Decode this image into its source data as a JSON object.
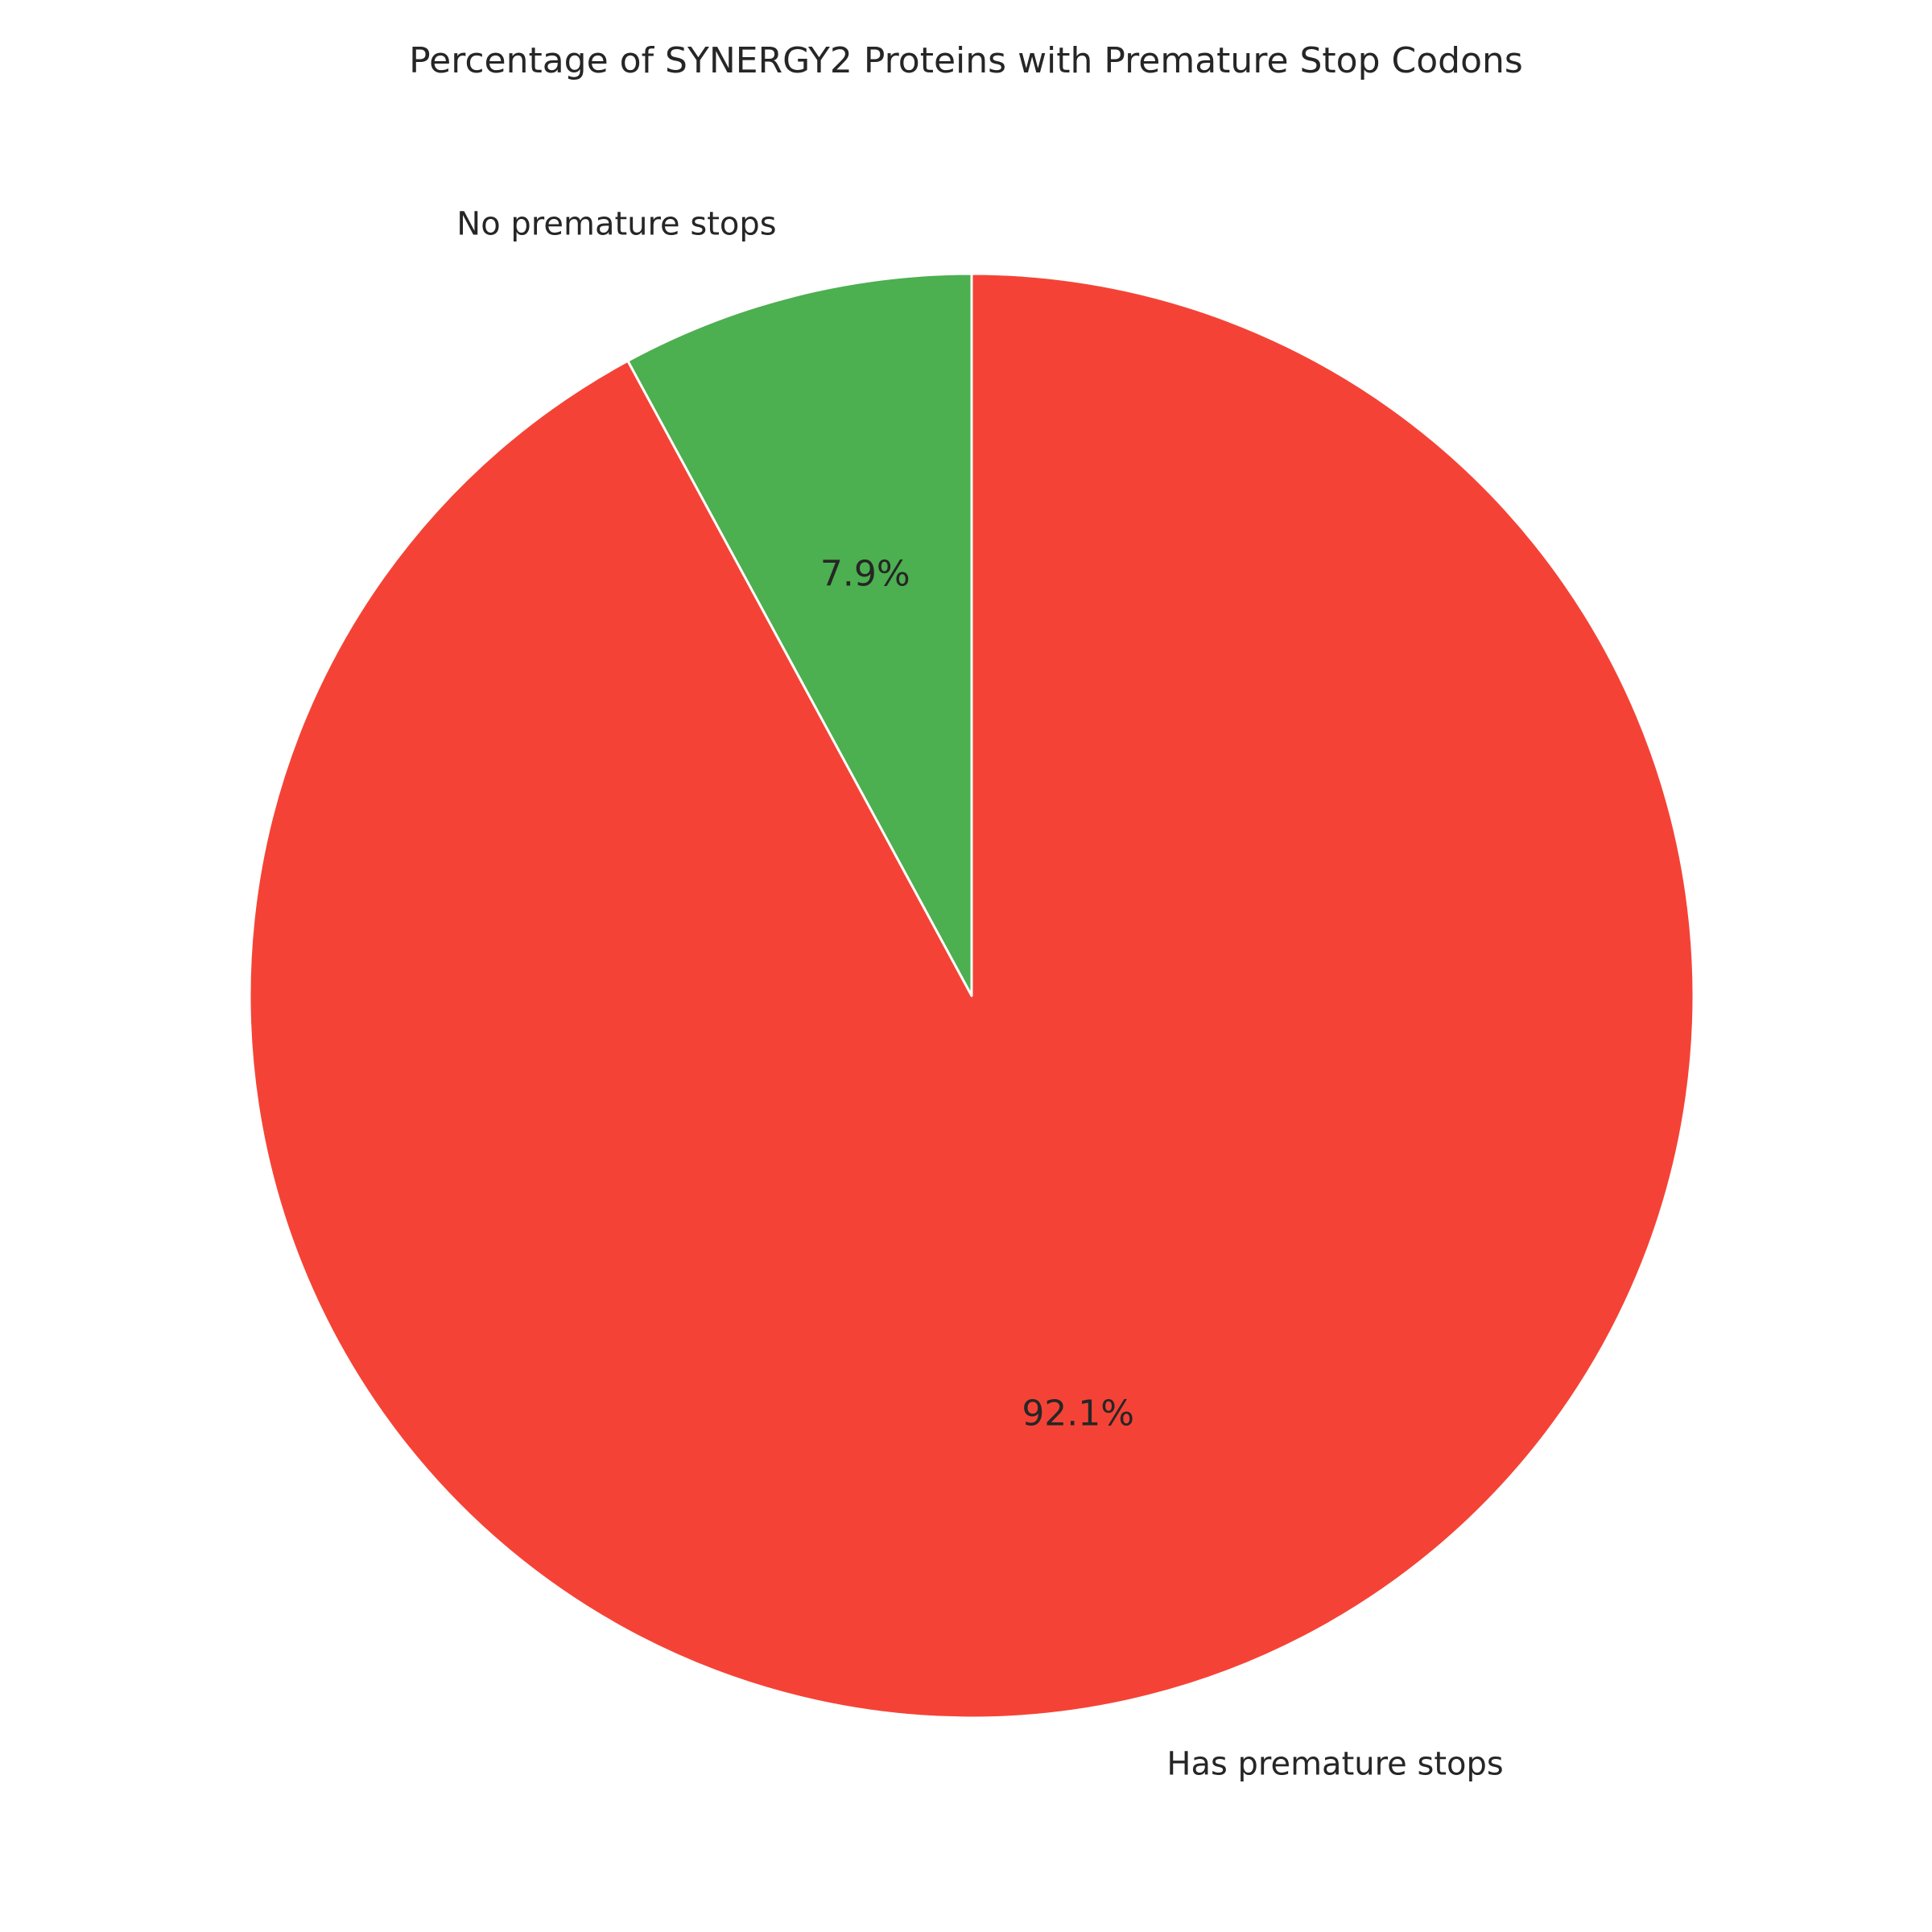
{
  "chart_data": {
    "type": "pie",
    "title": "Percentage of SYNERGY2 Proteins with Premature Stop Codons",
    "start_angle_deg": 90,
    "direction": "counterclockwise",
    "slices": [
      {
        "label": "No premature stops",
        "value": 7.9,
        "pct_label": "7.9%",
        "color": "#4caf50"
      },
      {
        "label": "Has premature stops",
        "value": 92.1,
        "pct_label": "92.1%",
        "color": "#f44336"
      }
    ],
    "edge_color": "#ffffff"
  }
}
